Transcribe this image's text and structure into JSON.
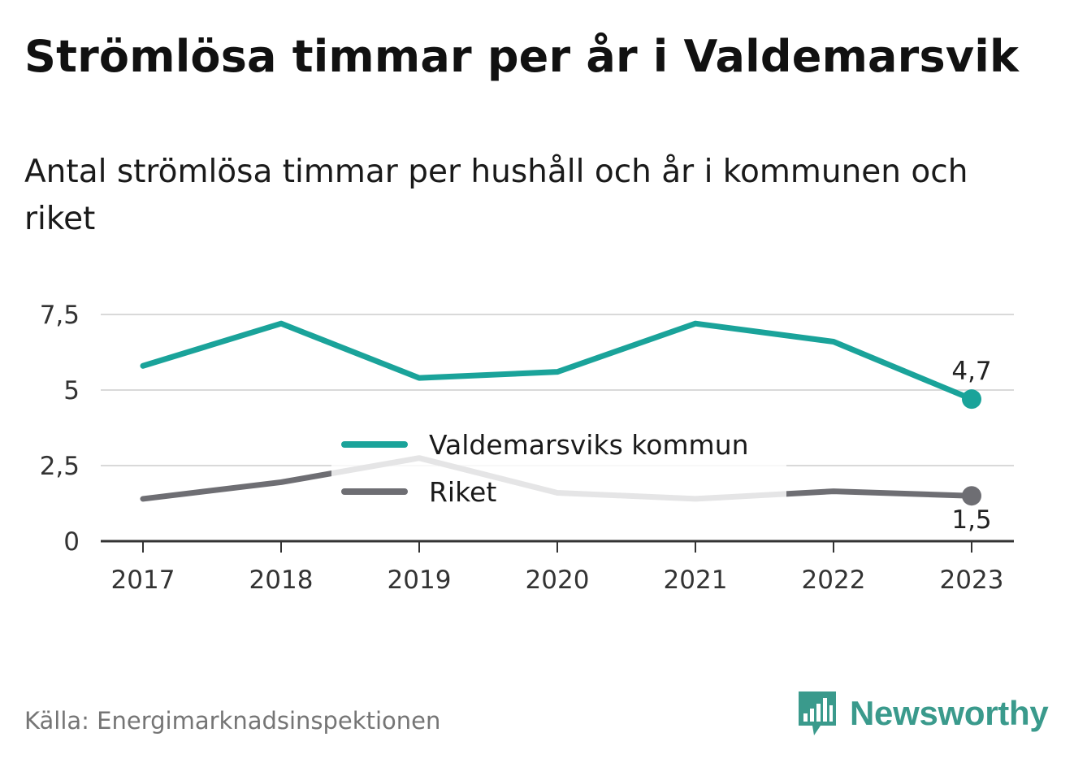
{
  "header": {
    "title": "Strömlösa timmar per år i Valdemarsvik",
    "subtitle": "Antal strömlösa timmar per hushåll och år i kommunen och riket"
  },
  "footer": {
    "source": "Källa: Energimarknadsinspektionen",
    "brand": "Newsworthy",
    "brand_icon": "bar-chart-speech-bubble-icon"
  },
  "colors": {
    "kommun": "#1aa39a",
    "riket": "#6e6e73",
    "grid": "#d9d9d9",
    "axis": "#333333",
    "brand": "#3a9a8c"
  },
  "chart_data": {
    "type": "line",
    "categories": [
      "2017",
      "2018",
      "2019",
      "2020",
      "2021",
      "2022",
      "2023"
    ],
    "ylim": [
      0,
      7.5
    ],
    "yticks": [
      "0",
      "2,5",
      "5",
      "7,5"
    ],
    "grid": true,
    "legend": "center",
    "series": [
      {
        "name": "Valdemarsviks kommun",
        "values": [
          5.8,
          7.2,
          5.4,
          5.6,
          7.2,
          6.6,
          4.7
        ],
        "end_label": "4,7"
      },
      {
        "name": "Riket",
        "values": [
          1.4,
          1.95,
          2.75,
          1.6,
          1.4,
          1.65,
          1.5
        ],
        "end_label": "1,5"
      }
    ]
  }
}
